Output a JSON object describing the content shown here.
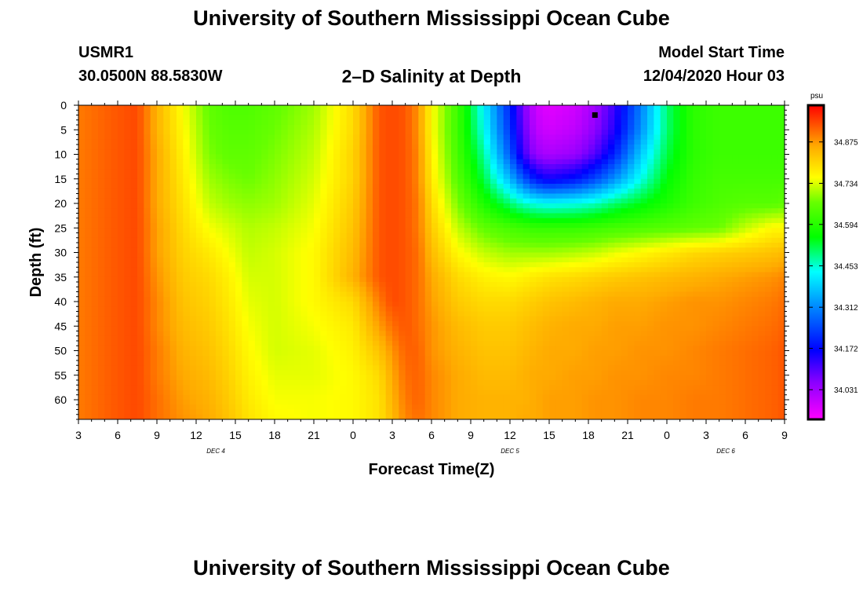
{
  "page": {
    "title_top": "University of Southern Mississippi Ocean Cube",
    "title_bottom": "University of Southern Mississippi Ocean Cube",
    "station_id": "USMR1",
    "station_coords": "30.0500N 88.5830W",
    "plot_title": "2–D Salinity at Depth",
    "model_label": "Model Start Time",
    "model_start": "12/04/2020 Hour 03"
  },
  "chart_data": {
    "type": "heatmap",
    "title": "2–D Salinity at Depth",
    "xlabel": "Forecast Time(Z)",
    "ylabel": "Depth (ft)",
    "x_hours_range": [
      0,
      54
    ],
    "x_tick_labels": [
      "3",
      "6",
      "9",
      "12",
      "15",
      "18",
      "21",
      "0",
      "3",
      "6",
      "9",
      "12",
      "15",
      "18",
      "21",
      "0",
      "3",
      "6",
      "9"
    ],
    "day_labels": [
      {
        "label": "DEC 4",
        "at_hour": 10.5
      },
      {
        "label": "DEC 5",
        "at_hour": 33
      },
      {
        "label": "DEC 6",
        "at_hour": 49.5
      }
    ],
    "y_range": [
      0,
      64
    ],
    "y_ticks": [
      0,
      5,
      10,
      15,
      20,
      25,
      30,
      35,
      40,
      45,
      50,
      55,
      60
    ],
    "colorbar": {
      "unit": "psu",
      "range": [
        33.93,
        35.0
      ],
      "ticks": [
        34.875,
        34.734,
        34.594,
        34.453,
        34.312,
        34.172,
        34.031
      ]
    },
    "marker": {
      "hour": 39.5,
      "depth": 2
    },
    "time_hours": [
      0,
      3,
      4.5,
      6,
      8,
      10,
      11.5,
      13,
      15,
      18,
      21,
      23,
      24,
      25,
      26,
      27,
      29,
      31,
      33,
      34,
      35,
      36,
      38,
      39.5,
      41,
      43,
      45,
      47,
      49,
      51,
      53,
      54
    ],
    "depths_ft": [
      0,
      5,
      10,
      15,
      20,
      25,
      30,
      35,
      40,
      45,
      50,
      55,
      60,
      64
    ],
    "salinity_psu": [
      [
        34.9,
        34.93,
        34.94,
        34.85,
        34.75,
        34.66,
        34.64,
        34.64,
        34.66,
        34.7,
        34.8,
        34.93,
        34.94,
        34.93,
        34.88,
        34.76,
        34.62,
        34.42,
        34.2,
        34.07,
        33.98,
        33.96,
        33.98,
        34.03,
        34.12,
        34.3,
        34.5,
        34.6,
        34.62,
        34.62,
        34.62,
        34.62
      ],
      [
        34.9,
        34.93,
        34.94,
        34.85,
        34.76,
        34.67,
        34.65,
        34.65,
        34.67,
        34.71,
        34.8,
        34.93,
        34.94,
        34.93,
        34.88,
        34.76,
        34.62,
        34.44,
        34.22,
        34.09,
        34.0,
        33.98,
        34.0,
        34.05,
        34.14,
        34.32,
        34.5,
        34.6,
        34.62,
        34.62,
        34.62,
        34.62
      ],
      [
        34.9,
        34.93,
        34.94,
        34.86,
        34.77,
        34.68,
        34.66,
        34.66,
        34.68,
        34.72,
        34.81,
        34.93,
        34.94,
        34.93,
        34.89,
        34.77,
        34.63,
        34.48,
        34.26,
        34.12,
        34.04,
        34.02,
        34.04,
        34.1,
        34.2,
        34.38,
        34.52,
        34.6,
        34.62,
        34.62,
        34.62,
        34.62
      ],
      [
        34.9,
        34.93,
        34.94,
        34.86,
        34.78,
        34.7,
        34.68,
        34.67,
        34.69,
        34.73,
        34.81,
        34.93,
        34.94,
        34.93,
        34.89,
        34.78,
        34.65,
        34.52,
        34.36,
        34.26,
        34.18,
        34.15,
        34.18,
        34.24,
        34.32,
        34.44,
        34.55,
        34.61,
        34.63,
        34.63,
        34.63,
        34.63
      ],
      [
        34.9,
        34.93,
        34.94,
        34.86,
        34.79,
        34.72,
        34.7,
        34.69,
        34.7,
        34.74,
        34.82,
        34.93,
        34.94,
        34.93,
        34.9,
        34.8,
        34.68,
        34.58,
        34.5,
        34.46,
        34.44,
        34.43,
        34.44,
        34.46,
        34.5,
        34.54,
        34.58,
        34.62,
        34.64,
        34.65,
        34.65,
        34.66
      ],
      [
        34.9,
        34.93,
        34.94,
        34.87,
        34.8,
        34.75,
        34.73,
        34.71,
        34.72,
        34.75,
        34.83,
        34.93,
        34.94,
        34.93,
        34.9,
        34.82,
        34.72,
        34.66,
        34.63,
        34.62,
        34.61,
        34.61,
        34.61,
        34.62,
        34.63,
        34.64,
        34.65,
        34.66,
        34.67,
        34.72,
        34.76,
        34.76
      ],
      [
        34.9,
        34.93,
        34.94,
        34.87,
        34.81,
        34.78,
        34.75,
        34.72,
        34.73,
        34.76,
        34.84,
        34.93,
        34.94,
        34.93,
        34.91,
        34.84,
        34.76,
        34.72,
        34.7,
        34.7,
        34.7,
        34.7,
        34.71,
        34.72,
        34.74,
        34.76,
        34.78,
        34.8,
        34.81,
        34.82,
        34.83,
        34.84
      ],
      [
        34.9,
        34.93,
        34.94,
        34.88,
        34.82,
        34.8,
        34.77,
        34.73,
        34.73,
        34.76,
        34.85,
        34.93,
        34.94,
        34.93,
        34.91,
        34.86,
        34.8,
        34.77,
        34.76,
        34.77,
        34.78,
        34.79,
        34.8,
        34.81,
        34.82,
        34.83,
        34.84,
        34.85,
        34.86,
        34.87,
        34.88,
        34.89
      ],
      [
        34.9,
        34.93,
        34.94,
        34.89,
        34.83,
        34.81,
        34.78,
        34.74,
        34.73,
        34.76,
        34.8,
        34.9,
        34.94,
        34.93,
        34.91,
        34.87,
        34.82,
        34.8,
        34.8,
        34.81,
        34.82,
        34.83,
        34.84,
        34.85,
        34.86,
        34.86,
        34.87,
        34.88,
        34.88,
        34.89,
        34.9,
        34.91
      ],
      [
        34.9,
        34.93,
        34.94,
        34.89,
        34.84,
        34.82,
        34.79,
        34.75,
        34.73,
        34.75,
        34.78,
        34.87,
        34.91,
        34.93,
        34.91,
        34.88,
        34.84,
        34.82,
        34.82,
        34.83,
        34.84,
        34.85,
        34.86,
        34.86,
        34.87,
        34.87,
        34.88,
        34.88,
        34.89,
        34.9,
        34.91,
        34.92
      ],
      [
        34.9,
        34.93,
        34.94,
        34.9,
        34.85,
        34.83,
        34.8,
        34.76,
        34.73,
        34.74,
        34.77,
        34.83,
        34.88,
        34.92,
        34.92,
        34.88,
        34.85,
        34.83,
        34.83,
        34.84,
        34.85,
        34.86,
        34.86,
        34.87,
        34.87,
        34.88,
        34.88,
        34.89,
        34.9,
        34.91,
        34.92,
        34.93
      ],
      [
        34.9,
        34.93,
        34.94,
        34.9,
        34.86,
        34.84,
        34.81,
        34.77,
        34.74,
        34.74,
        34.76,
        34.8,
        34.86,
        34.91,
        34.92,
        34.89,
        34.86,
        34.84,
        34.84,
        34.85,
        34.86,
        34.86,
        34.87,
        34.87,
        34.88,
        34.88,
        34.89,
        34.89,
        34.9,
        34.91,
        34.92,
        34.93
      ],
      [
        34.9,
        34.93,
        34.94,
        34.91,
        34.87,
        34.85,
        34.82,
        34.78,
        34.75,
        34.75,
        34.76,
        34.79,
        34.85,
        34.9,
        34.92,
        34.89,
        34.86,
        34.85,
        34.85,
        34.85,
        34.86,
        34.87,
        34.87,
        34.88,
        34.88,
        34.89,
        34.89,
        34.9,
        34.9,
        34.91,
        34.92,
        34.93
      ],
      [
        34.9,
        34.93,
        34.94,
        34.91,
        34.88,
        34.86,
        34.83,
        34.79,
        34.76,
        34.75,
        34.76,
        34.79,
        34.84,
        34.89,
        34.91,
        34.89,
        34.86,
        34.85,
        34.85,
        34.86,
        34.86,
        34.87,
        34.87,
        34.88,
        34.88,
        34.89,
        34.89,
        34.9,
        34.9,
        34.91,
        34.92,
        34.93
      ]
    ]
  }
}
